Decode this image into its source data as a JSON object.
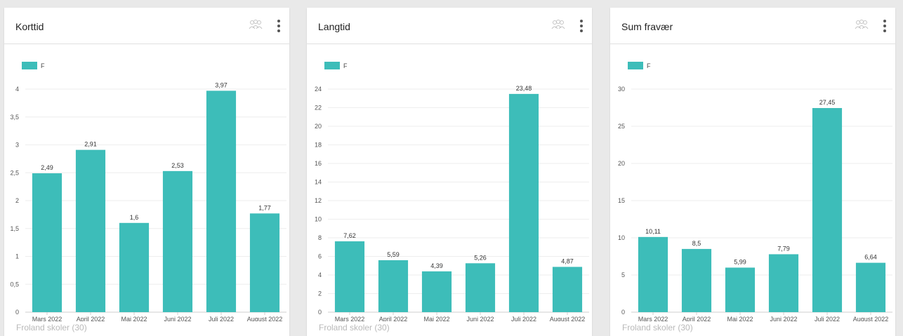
{
  "colors": {
    "bar": "#3dbdb9",
    "grid": "#eeeeee",
    "axis": "#cfcfcf"
  },
  "icons": {
    "group": "group-icon",
    "menu": "more-vert-icon"
  },
  "chart_data": [
    {
      "type": "bar",
      "title": "Korttid",
      "legend": [
        "F"
      ],
      "legend_position": "top-left",
      "categories": [
        "Mars 2022",
        "April 2022",
        "Mai 2022",
        "Juni 2022",
        "Juli 2022",
        "August 2022"
      ],
      "values": [
        2.49,
        2.91,
        1.6,
        2.53,
        3.97,
        1.77
      ],
      "value_labels": [
        "2,49",
        "2,91",
        "1,6",
        "2,53",
        "3,97",
        "1,77"
      ],
      "ylim": [
        0,
        4
      ],
      "yticks": [
        0,
        0.5,
        1,
        1.5,
        2,
        2.5,
        3,
        3.5,
        4
      ],
      "ytick_labels": [
        "0",
        "0,5",
        "1",
        "1,5",
        "2",
        "2,5",
        "3",
        "3,5",
        "4"
      ],
      "grid": true,
      "footer": "Froland skoler (30)"
    },
    {
      "type": "bar",
      "title": "Langtid",
      "legend": [
        "F"
      ],
      "legend_position": "top-left",
      "categories": [
        "Mars 2022",
        "April 2022",
        "Mai 2022",
        "Juni 2022",
        "Juli 2022",
        "August 2022"
      ],
      "values": [
        7.62,
        5.59,
        4.39,
        5.26,
        23.48,
        4.87
      ],
      "value_labels": [
        "7,62",
        "5,59",
        "4,39",
        "5,26",
        "23,48",
        "4,87"
      ],
      "ylim": [
        0,
        24
      ],
      "yticks": [
        0,
        2,
        4,
        6,
        8,
        10,
        12,
        14,
        16,
        18,
        20,
        22,
        24
      ],
      "ytick_labels": [
        "0",
        "2",
        "4",
        "6",
        "8",
        "10",
        "12",
        "14",
        "16",
        "18",
        "20",
        "22",
        "24"
      ],
      "grid": true,
      "footer": "Froland skoler (30)"
    },
    {
      "type": "bar",
      "title": "Sum fravær",
      "legend": [
        "F"
      ],
      "legend_position": "top-left",
      "categories": [
        "Mars 2022",
        "April 2022",
        "Mai 2022",
        "Juni 2022",
        "Juli 2022",
        "August 2022"
      ],
      "values": [
        10.11,
        8.5,
        5.99,
        7.79,
        27.45,
        6.64
      ],
      "value_labels": [
        "10,11",
        "8,5",
        "5,99",
        "7,79",
        "27,45",
        "6,64"
      ],
      "ylim": [
        0,
        30
      ],
      "yticks": [
        0,
        5,
        10,
        15,
        20,
        25,
        30
      ],
      "ytick_labels": [
        "0",
        "5",
        "10",
        "15",
        "20",
        "25",
        "30"
      ],
      "grid": true,
      "footer": "Froland skoler (30)"
    }
  ]
}
